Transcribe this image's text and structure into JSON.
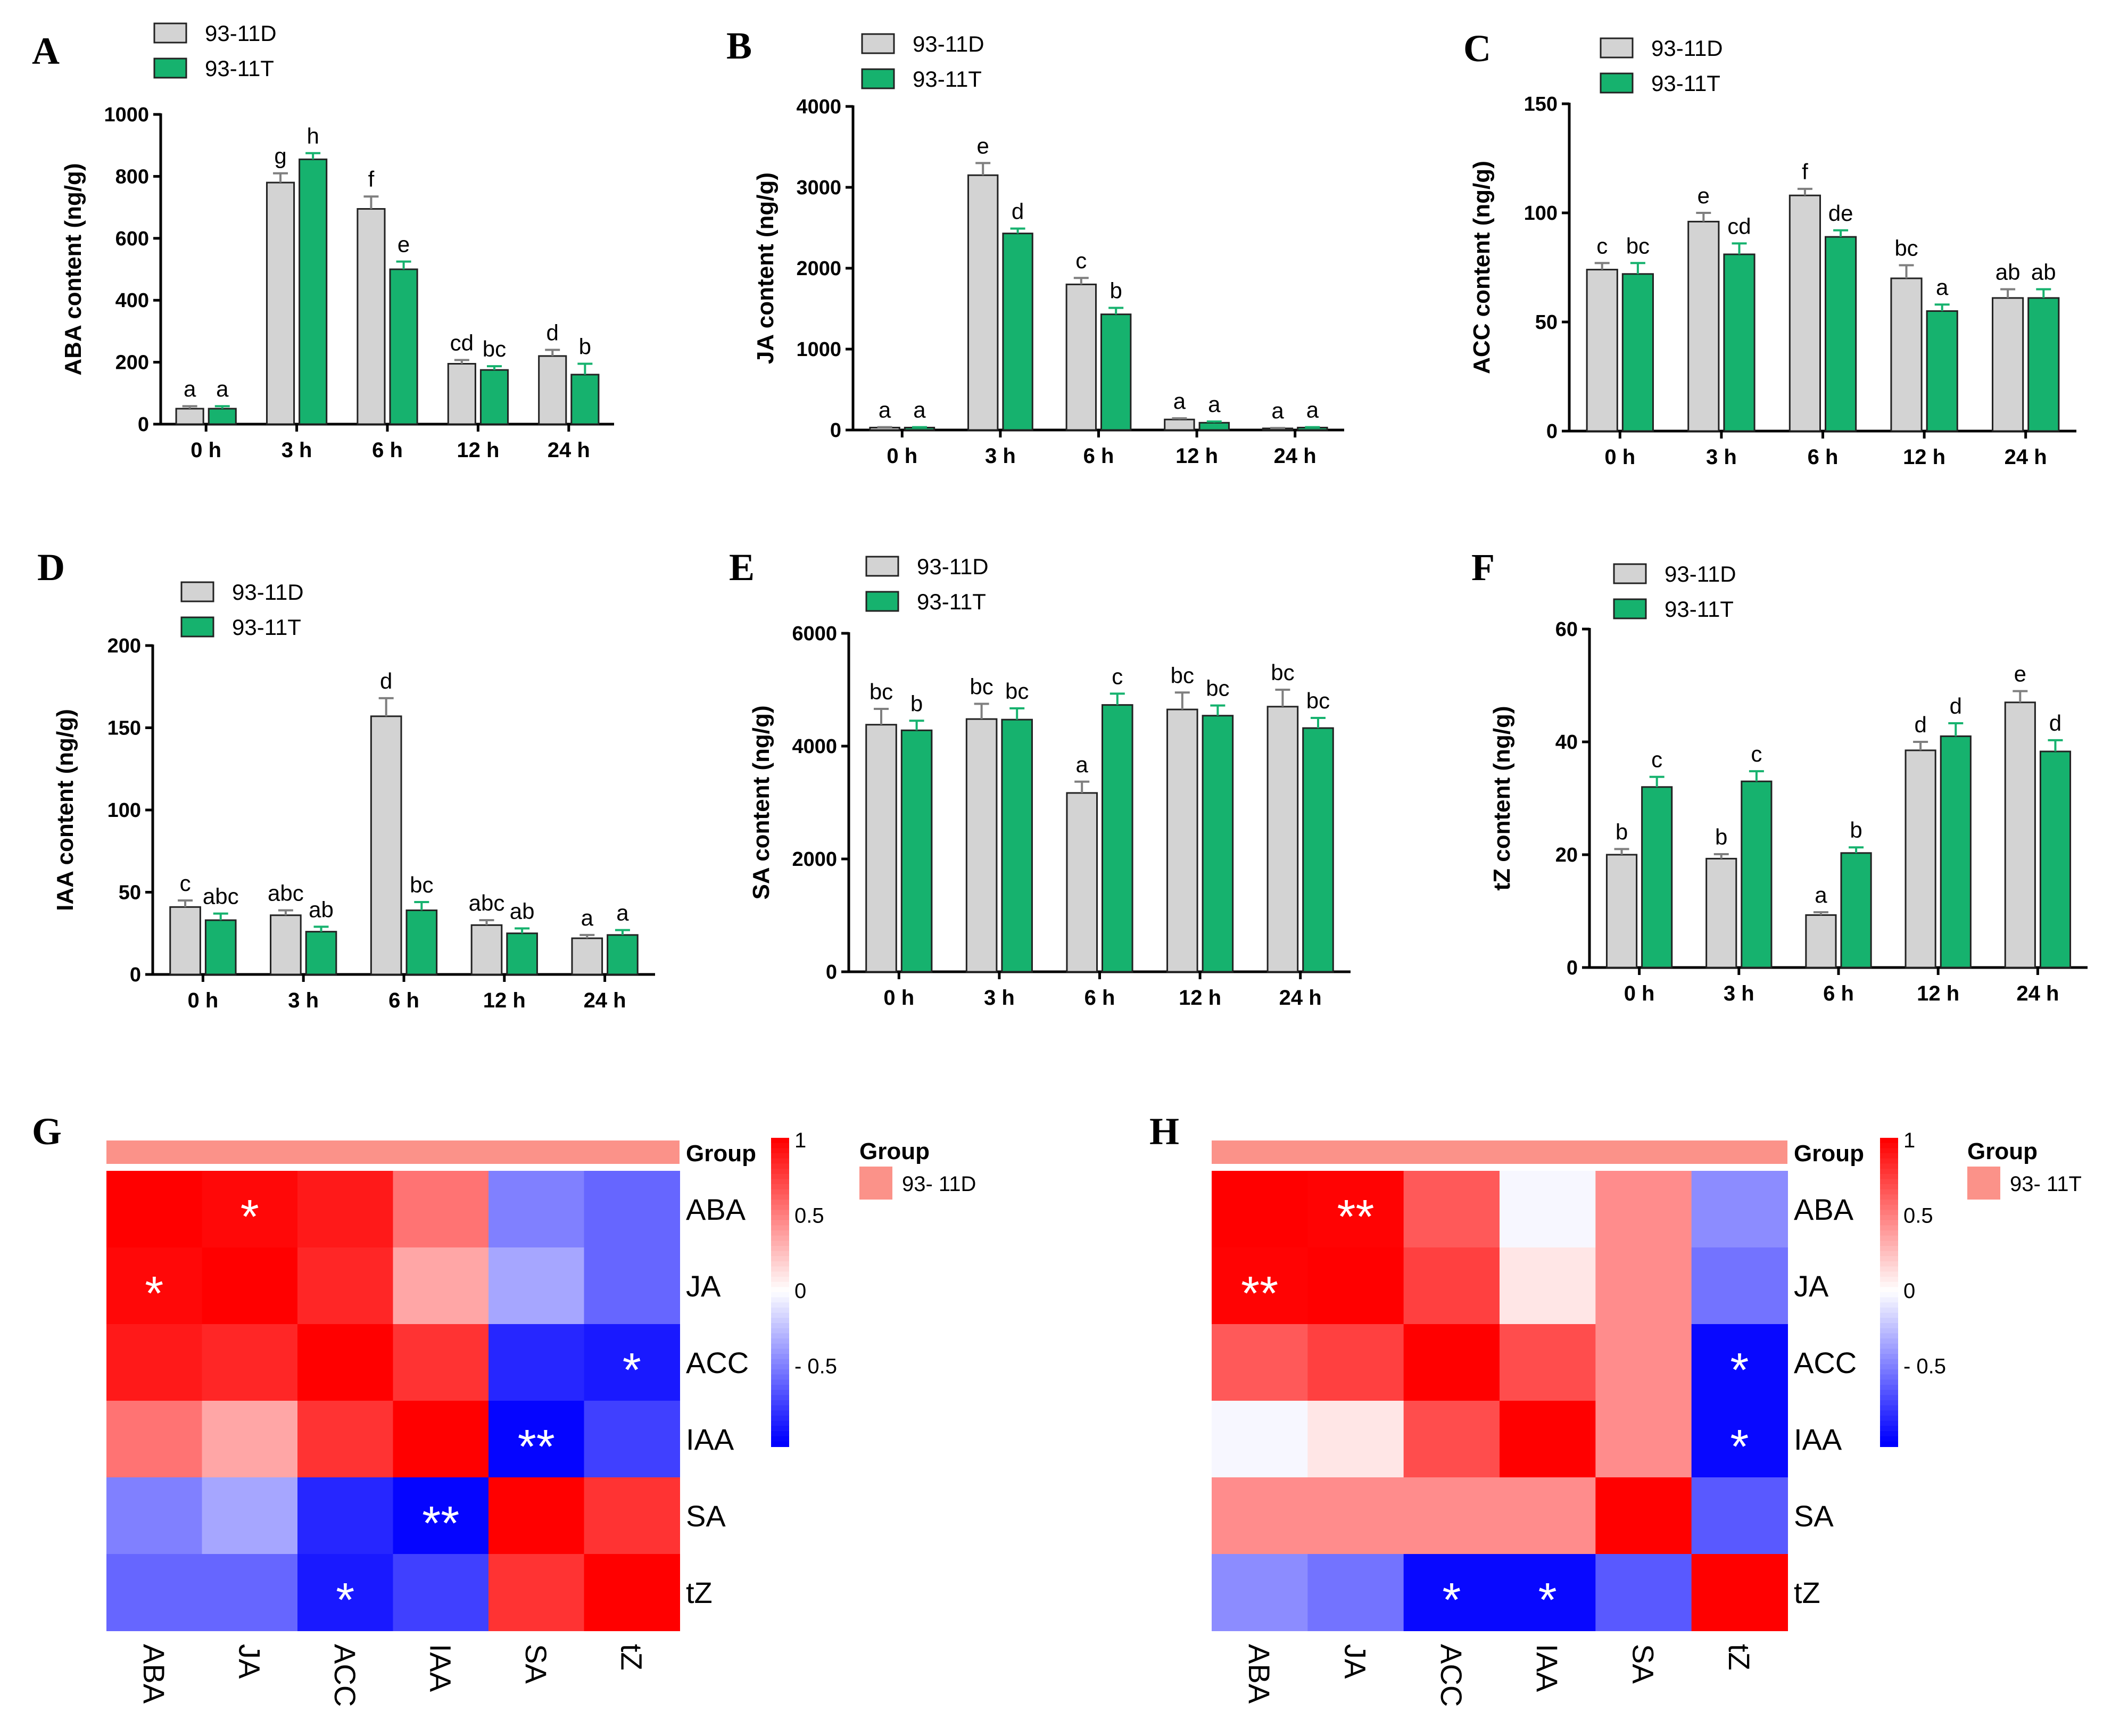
{
  "colors": {
    "d": "#d3d3d3",
    "t": "#16b26e",
    "d_err": "#7f7f7f",
    "t_err": "#16b26e",
    "group": "#fb9289"
  },
  "chart_data": [
    {
      "panel": "A",
      "type": "bar",
      "ylabel": "ABA content (ng/g)",
      "categories": [
        "0 h",
        "3 h",
        "6 h",
        "12 h",
        "24 h"
      ],
      "ylim": [
        0,
        1000
      ],
      "yticks": [
        0,
        200,
        400,
        600,
        800,
        1000
      ],
      "series": [
        {
          "name": "93-11D",
          "values": [
            50,
            780,
            695,
            195,
            220
          ],
          "errors": [
            8,
            30,
            40,
            12,
            20
          ],
          "letters": [
            "a",
            "g",
            "f",
            "cd",
            "d"
          ]
        },
        {
          "name": "93-11T",
          "values": [
            50,
            855,
            500,
            175,
            160
          ],
          "errors": [
            8,
            20,
            25,
            12,
            35
          ],
          "letters": [
            "a",
            "h",
            "e",
            "bc",
            "b"
          ]
        }
      ]
    },
    {
      "panel": "B",
      "type": "bar",
      "ylabel": "JA content (ng/g)",
      "categories": [
        "0 h",
        "3 h",
        "6 h",
        "12 h",
        "24 h"
      ],
      "ylim": [
        0,
        4000
      ],
      "yticks": [
        0,
        1000,
        2000,
        3000,
        4000
      ],
      "series": [
        {
          "name": "93-11D",
          "values": [
            30,
            3150,
            1800,
            130,
            20
          ],
          "errors": [
            5,
            150,
            80,
            15,
            5
          ],
          "letters": [
            "a",
            "e",
            "c",
            "a",
            "a"
          ]
        },
        {
          "name": "93-11T",
          "values": [
            30,
            2430,
            1430,
            90,
            30
          ],
          "errors": [
            5,
            60,
            80,
            15,
            5
          ],
          "letters": [
            "a",
            "d",
            "b",
            "a",
            "a"
          ]
        }
      ]
    },
    {
      "panel": "C",
      "type": "bar",
      "ylabel": "ACC content (ng/g)",
      "categories": [
        "0 h",
        "3 h",
        "6 h",
        "12 h",
        "24 h"
      ],
      "ylim": [
        0,
        150
      ],
      "yticks": [
        0,
        50,
        100,
        150
      ],
      "series": [
        {
          "name": "93-11D",
          "values": [
            74,
            96,
            108,
            70,
            61
          ],
          "errors": [
            3,
            4,
            3,
            6,
            4
          ],
          "letters": [
            "c",
            "e",
            "f",
            "bc",
            "ab"
          ]
        },
        {
          "name": "93-11T",
          "values": [
            72,
            81,
            89,
            55,
            61
          ],
          "errors": [
            5,
            5,
            3,
            3,
            4
          ],
          "letters": [
            "bc",
            "cd",
            "de",
            "a",
            "ab"
          ]
        }
      ]
    },
    {
      "panel": "D",
      "type": "bar",
      "ylabel": "IAA content (ng/g)",
      "categories": [
        "0 h",
        "3 h",
        "6 h",
        "12 h",
        "24 h"
      ],
      "ylim": [
        0,
        200
      ],
      "yticks": [
        0,
        50,
        100,
        150,
        200
      ],
      "series": [
        {
          "name": "93-11D",
          "values": [
            41,
            36,
            157,
            30,
            22
          ],
          "errors": [
            4,
            3,
            11,
            3,
            2
          ],
          "letters": [
            "c",
            "abc",
            "d",
            "abc",
            "a"
          ]
        },
        {
          "name": "93-11T",
          "values": [
            33,
            26,
            39,
            25,
            24
          ],
          "errors": [
            4,
            3,
            5,
            3,
            3
          ],
          "letters": [
            "abc",
            "ab",
            "bc",
            "ab",
            "a"
          ]
        }
      ]
    },
    {
      "panel": "E",
      "type": "bar",
      "ylabel": "SA content (ng/g)",
      "categories": [
        "0 h",
        "3 h",
        "6 h",
        "12 h",
        "24 h"
      ],
      "ylim": [
        0,
        6000
      ],
      "yticks": [
        0,
        2000,
        4000,
        6000
      ],
      "series": [
        {
          "name": "93-11D",
          "values": [
            4380,
            4480,
            3170,
            4650,
            4700
          ],
          "errors": [
            280,
            270,
            200,
            300,
            300
          ],
          "letters": [
            "bc",
            "bc",
            "a",
            "bc",
            "bc"
          ]
        },
        {
          "name": "93-11T",
          "values": [
            4280,
            4470,
            4730,
            4540,
            4320
          ],
          "errors": [
            170,
            200,
            200,
            180,
            180
          ],
          "letters": [
            "b",
            "bc",
            "c",
            "bc",
            "bc"
          ]
        }
      ]
    },
    {
      "panel": "F",
      "type": "bar",
      "ylabel": "tZ content (ng/g)",
      "categories": [
        "0 h",
        "3 h",
        "6 h",
        "12 h",
        "24 h"
      ],
      "ylim": [
        0,
        60
      ],
      "yticks": [
        0,
        20,
        40,
        60
      ],
      "series": [
        {
          "name": "93-11D",
          "values": [
            20,
            19.3,
            9.3,
            38.5,
            47
          ],
          "errors": [
            1,
            0.8,
            0.5,
            1.5,
            2
          ],
          "letters": [
            "b",
            "b",
            "a",
            "d",
            "e"
          ]
        },
        {
          "name": "93-11T",
          "values": [
            32,
            33,
            20.3,
            41,
            38.3
          ],
          "errors": [
            1.8,
            1.8,
            1,
            2.3,
            2
          ],
          "letters": [
            "c",
            "c",
            "b",
            "d",
            "d"
          ]
        }
      ]
    },
    {
      "panel": "G",
      "type": "heatmap",
      "labels": [
        "ABA",
        "JA",
        "ACC",
        "IAA",
        "SA",
        "tZ"
      ],
      "group_title": "Group",
      "group_name": "93- 11D",
      "colorbar_ticks": [
        "1",
        "0.5",
        "0",
        "- 0.5"
      ],
      "colorbar_values": [
        1,
        0.5,
        0,
        -0.5
      ],
      "matrix": [
        [
          1,
          0.97,
          0.9,
          0.55,
          -0.5,
          -0.6
        ],
        [
          0.97,
          1,
          0.85,
          0.35,
          -0.35,
          -0.6
        ],
        [
          0.9,
          0.85,
          1,
          0.8,
          -0.85,
          -0.9
        ],
        [
          0.55,
          0.35,
          0.8,
          1,
          -0.98,
          -0.75
        ],
        [
          -0.5,
          -0.35,
          -0.85,
          -0.98,
          1,
          0.8
        ],
        [
          -0.6,
          -0.6,
          -0.9,
          -0.75,
          0.8,
          1
        ]
      ],
      "stars": [
        [
          "",
          "*",
          "",
          "",
          "",
          ""
        ],
        [
          "*",
          "",
          "",
          "",
          "",
          ""
        ],
        [
          "",
          "",
          "",
          "",
          "",
          "*"
        ],
        [
          "",
          "",
          "",
          "",
          "**",
          ""
        ],
        [
          "",
          "",
          "",
          "**",
          "",
          ""
        ],
        [
          "",
          "",
          "*",
          "",
          "",
          ""
        ]
      ]
    },
    {
      "panel": "H",
      "type": "heatmap",
      "labels": [
        "ABA",
        "JA",
        "ACC",
        "IAA",
        "SA",
        "tZ"
      ],
      "group_title": "Group",
      "group_name": "93- 11T",
      "colorbar_ticks": [
        "1",
        "0.5",
        "0",
        "- 0.5"
      ],
      "colorbar_values": [
        1,
        0.5,
        0,
        -0.5
      ],
      "matrix": [
        [
          1,
          0.99,
          0.65,
          -0.03,
          0.45,
          -0.45
        ],
        [
          0.99,
          1,
          0.75,
          0.1,
          0.45,
          -0.55
        ],
        [
          0.65,
          0.75,
          1,
          0.7,
          0.45,
          -0.97
        ],
        [
          -0.03,
          0.1,
          0.7,
          1,
          0.45,
          -0.97
        ],
        [
          0.45,
          0.45,
          0.45,
          0.45,
          1,
          -0.65
        ],
        [
          -0.45,
          -0.55,
          -0.97,
          -0.97,
          -0.65,
          1
        ]
      ],
      "stars": [
        [
          "",
          "**",
          "",
          "",
          "",
          ""
        ],
        [
          "**",
          "",
          "",
          "",
          "",
          ""
        ],
        [
          "",
          "",
          "",
          "",
          "",
          "*"
        ],
        [
          "",
          "",
          "",
          "",
          "",
          "*"
        ],
        [
          "",
          "",
          "",
          "",
          "",
          ""
        ],
        [
          "",
          "",
          "*",
          "*",
          "",
          ""
        ]
      ]
    }
  ]
}
